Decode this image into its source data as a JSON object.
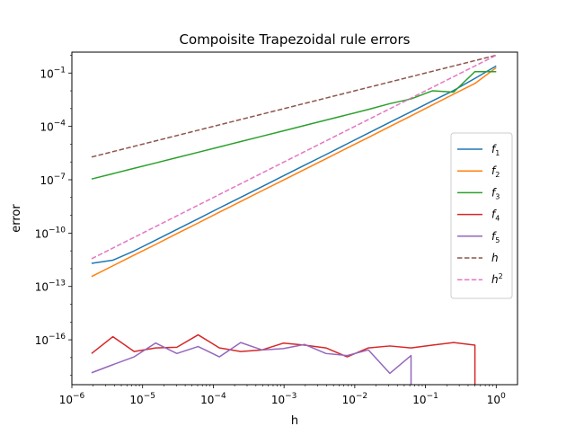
{
  "chart_data": {
    "type": "line",
    "title": "Compoisite Trapezoidal rule errors",
    "xlabel": "h",
    "ylabel": "error",
    "xscale": "log",
    "yscale": "log",
    "xlim": [
      1e-06,
      2
    ],
    "ylim": [
      3e-19,
      1.5
    ],
    "grid": false,
    "legend_position": "center-right",
    "x_ticks": [
      {
        "value": 1e-06,
        "base": "10",
        "exp": "−6"
      },
      {
        "value": 1e-05,
        "base": "10",
        "exp": "−5"
      },
      {
        "value": 0.0001,
        "base": "10",
        "exp": "−4"
      },
      {
        "value": 0.001,
        "base": "10",
        "exp": "−3"
      },
      {
        "value": 0.01,
        "base": "10",
        "exp": "−2"
      },
      {
        "value": 0.1,
        "base": "10",
        "exp": "−1"
      },
      {
        "value": 1,
        "base": "10",
        "exp": "0"
      }
    ],
    "y_ticks": [
      {
        "value": 1e-16,
        "base": "10",
        "exp": "−16"
      },
      {
        "value": 1e-13,
        "base": "10",
        "exp": "−13"
      },
      {
        "value": 1e-10,
        "base": "10",
        "exp": "−10"
      },
      {
        "value": 1e-07,
        "base": "10",
        "exp": "−7"
      },
      {
        "value": 0.0001,
        "base": "10",
        "exp": "−4"
      },
      {
        "value": 0.1,
        "base": "10",
        "exp": "−1"
      }
    ],
    "series": [
      {
        "label_base": "f",
        "label_sub": "1",
        "color": "#1f77b4",
        "dash": "solid",
        "x": [
          1.9e-06,
          3.8e-06,
          7.6e-06,
          1.53e-05,
          3.05e-05,
          6.1e-05,
          0.000122,
          0.000244,
          0.000488,
          0.000977,
          0.00195,
          0.00391,
          0.00781,
          0.0156,
          0.0313,
          0.0625,
          0.125,
          0.25,
          0.5,
          1
        ],
        "y": [
          2e-12,
          3e-12,
          1e-11,
          4e-11,
          1.6e-10,
          6.4e-10,
          2.6e-09,
          1.03e-08,
          4.1e-08,
          1.65e-07,
          6.6e-07,
          2.6e-06,
          1.05e-05,
          4.2e-05,
          0.00017,
          0.00067,
          0.0027,
          0.0105,
          0.05,
          0.25
        ]
      },
      {
        "label_base": "f",
        "label_sub": "2",
        "color": "#ff7f0e",
        "dash": "solid",
        "x": [
          1.9e-06,
          3.8e-06,
          7.6e-06,
          1.53e-05,
          3.05e-05,
          6.1e-05,
          0.000122,
          0.000244,
          0.000488,
          0.000977,
          0.00195,
          0.00391,
          0.00781,
          0.0156,
          0.0313,
          0.0625,
          0.125,
          0.25,
          0.5,
          1
        ],
        "y": [
          3.6e-13,
          1.45e-12,
          5.8e-12,
          2.3e-11,
          9.3e-11,
          3.7e-10,
          1.5e-09,
          6e-09,
          2.4e-08,
          9.5e-08,
          3.8e-07,
          1.5e-06,
          6.1e-06,
          2.4e-05,
          9.8e-05,
          0.00039,
          0.0016,
          0.0065,
          0.026,
          0.2
        ]
      },
      {
        "label_base": "f",
        "label_sub": "3",
        "color": "#2ca02c",
        "dash": "solid",
        "x": [
          1.9e-06,
          3.8e-06,
          7.6e-06,
          1.53e-05,
          3.05e-05,
          6.1e-05,
          0.000122,
          0.000244,
          0.000488,
          0.000977,
          0.00195,
          0.00391,
          0.00781,
          0.0156,
          0.0313,
          0.0625,
          0.125,
          0.25,
          0.5,
          1
        ],
        "y": [
          1.1e-07,
          2.2e-07,
          4.4e-07,
          8.8e-07,
          1.75e-06,
          3.5e-06,
          7e-06,
          1.4e-05,
          2.8e-05,
          5.6e-05,
          0.000112,
          0.000225,
          0.00045,
          0.0009,
          0.0019,
          0.0035,
          0.01,
          0.0085,
          0.12,
          0.12
        ]
      },
      {
        "label_base": "f",
        "label_sub": "4",
        "color": "#d62728",
        "dash": "solid",
        "x": [
          1.9e-06,
          3.8e-06,
          7.6e-06,
          1.53e-05,
          3.05e-05,
          6.1e-05,
          0.000122,
          0.000244,
          0.000488,
          0.000977,
          0.00195,
          0.00391,
          0.00781,
          0.0156,
          0.0313,
          0.0625,
          0.125,
          0.25,
          0.5,
          0.5
        ],
        "y": [
          1.7e-17,
          1.5e-16,
          2.2e-17,
          3.5e-17,
          3.8e-17,
          1.9e-16,
          3.5e-17,
          2.2e-17,
          2.7e-17,
          6.5e-17,
          5e-17,
          3.5e-17,
          1.1e-17,
          3.5e-17,
          4.5e-17,
          3.5e-17,
          5e-17,
          7e-17,
          5e-17,
          3e-19
        ]
      },
      {
        "label_base": "f",
        "label_sub": "5",
        "color": "#9467bd",
        "dash": "solid",
        "x": [
          1.9e-06,
          3.8e-06,
          7.6e-06,
          1.53e-05,
          3.05e-05,
          6.1e-05,
          0.000122,
          0.000244,
          0.000488,
          0.000977,
          0.00195,
          0.00391,
          0.00781,
          0.0156,
          0.0313,
          0.0625,
          0.0625
        ],
        "y": [
          1.4e-18,
          4e-18,
          1.1e-17,
          6.6e-17,
          1.7e-17,
          4.2e-17,
          1.1e-17,
          7e-17,
          2.7e-17,
          3.2e-17,
          5.5e-17,
          1.7e-17,
          1.3e-17,
          2.7e-17,
          1.3e-18,
          1.3e-17,
          3e-19
        ]
      },
      {
        "label_base": "h",
        "label_sub": "",
        "label_sup": "",
        "color": "#8c564b",
        "dash": "dashed",
        "x": [
          1.9e-06,
          1
        ],
        "y": [
          1.9e-06,
          1
        ]
      },
      {
        "label_base": "h",
        "label_sub": "",
        "label_sup": "2",
        "color": "#e377c2",
        "dash": "dashed",
        "x": [
          1.9e-06,
          1
        ],
        "y": [
          3.6e-12,
          1
        ]
      }
    ]
  }
}
